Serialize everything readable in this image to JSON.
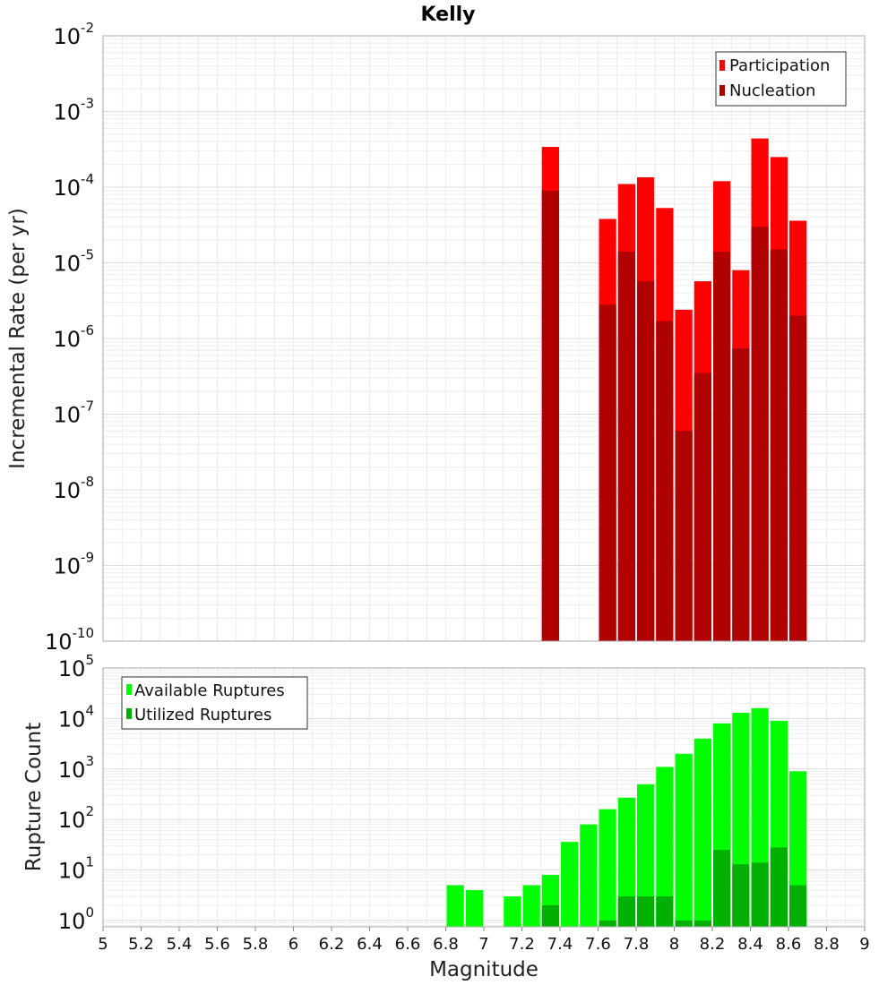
{
  "title": "Kelly",
  "colors": {
    "participation": "#ff0000",
    "nucleation": "#b00000",
    "available": "#00ff00",
    "utilized": "#00b000",
    "grid": "#e6e6e6",
    "plot_border": "#aaaaaa"
  },
  "x_axis": {
    "label": "Magnitude",
    "range": [
      5,
      9
    ],
    "ticks": [
      "5",
      "5.2",
      "5.4",
      "5.6",
      "5.8",
      "6",
      "6.2",
      "6.4",
      "6.6",
      "6.8",
      "7",
      "7.2",
      "7.4",
      "7.6",
      "7.8",
      "8",
      "8.2",
      "8.4",
      "8.6",
      "8.8",
      "9"
    ]
  },
  "chart_data": [
    {
      "type": "bar",
      "title": "Kelly",
      "xlabel": "Magnitude",
      "ylabel": "Incremental Rate (per yr)",
      "yscale": "log",
      "ylim": [
        1e-10,
        0.01
      ],
      "ytick_exponents": [
        "-10",
        "-9",
        "-8",
        "-7",
        "-6",
        "-5",
        "-4",
        "-3",
        "-2"
      ],
      "legend": "top-right",
      "grid": true,
      "series": [
        {
          "name": "Participation",
          "color": "#ff0000",
          "x": [
            7.35,
            7.65,
            7.75,
            7.85,
            7.95,
            8.05,
            8.15,
            8.25,
            8.35,
            8.45,
            8.55,
            8.65
          ],
          "values": [
            0.00034,
            3.8e-05,
            0.00011,
            0.000135,
            5.3e-05,
            2.4e-06,
            5.7e-06,
            0.00012,
            8e-06,
            0.00044,
            0.00025,
            3.6e-05
          ]
        },
        {
          "name": "Nucleation",
          "color": "#b00000",
          "x": [
            7.35,
            7.65,
            7.75,
            7.85,
            7.95,
            8.05,
            8.15,
            8.25,
            8.35,
            8.45,
            8.55,
            8.65
          ],
          "values": [
            9e-05,
            2.8e-06,
            1.4e-05,
            5.7e-06,
            1.7e-06,
            6e-08,
            3.5e-07,
            1.4e-05,
            7.4e-07,
            3e-05,
            1.5e-05,
            2e-06
          ]
        }
      ]
    },
    {
      "type": "bar",
      "xlabel": "Magnitude",
      "ylabel": "Rupture Count",
      "yscale": "log",
      "ylim": [
        0.75,
        100000
      ],
      "ytick_exponents": [
        "0",
        "1",
        "2",
        "3",
        "4",
        "5"
      ],
      "legend": "top-left",
      "grid": true,
      "series": [
        {
          "name": "Available Ruptures",
          "color": "#00ff00",
          "x": [
            6.85,
            6.95,
            7.15,
            7.25,
            7.35,
            7.45,
            7.55,
            7.65,
            7.75,
            7.85,
            7.95,
            8.05,
            8.15,
            8.25,
            8.35,
            8.45,
            8.55,
            8.65
          ],
          "values": [
            5,
            4,
            3,
            5,
            8,
            36,
            80,
            160,
            270,
            500,
            1100,
            2000,
            4000,
            8000,
            13000,
            16000,
            9000,
            900
          ]
        },
        {
          "name": "Utilized Ruptures",
          "color": "#00b000",
          "x": [
            7.35,
            7.65,
            7.75,
            7.85,
            7.95,
            8.05,
            8.15,
            8.25,
            8.35,
            8.45,
            8.55,
            8.65
          ],
          "values": [
            2,
            1,
            3,
            3,
            3,
            1,
            1,
            25,
            13,
            14,
            28,
            5
          ]
        }
      ]
    }
  ]
}
